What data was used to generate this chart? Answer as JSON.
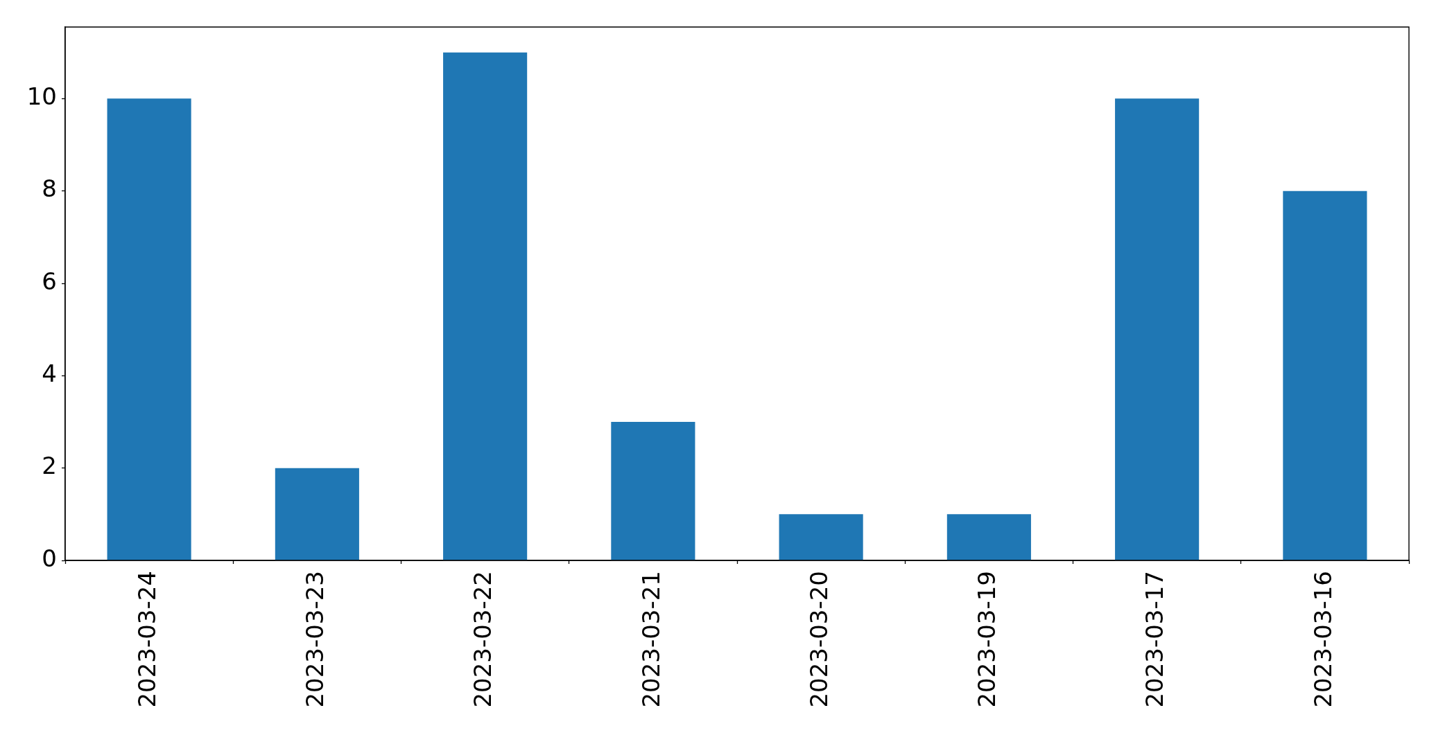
{
  "chart_data": {
    "type": "bar",
    "categories": [
      "2023-03-24",
      "2023-03-23",
      "2023-03-22",
      "2023-03-21",
      "2023-03-20",
      "2023-03-19",
      "2023-03-17",
      "2023-03-16"
    ],
    "values": [
      10,
      2,
      11,
      3,
      1,
      1,
      10,
      8
    ],
    "color": "#1f77b4",
    "ylim": [
      0,
      11.55
    ],
    "yticks": [
      0,
      2,
      4,
      6,
      8,
      10
    ]
  }
}
